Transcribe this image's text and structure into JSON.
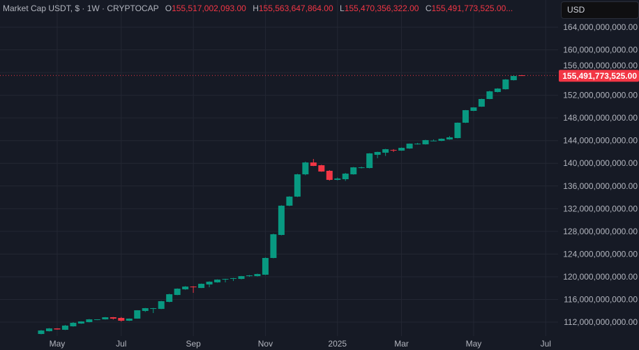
{
  "legend": {
    "symbol": "Market Cap USDT, $ · 1W · CRYPTOCAP",
    "open_label": "O",
    "open": "155,517,002,093.00",
    "high_label": "H",
    "high": "155,563,647,864.00",
    "low_label": "L",
    "low": "155,470,356,322.00",
    "close_label": "C",
    "close": "155,491,773,525.00..."
  },
  "currency_button": "USD",
  "colors": {
    "background": "#161a25",
    "up": "#089981",
    "down": "#f23645",
    "grid": "#232733",
    "axis_text": "#b2b5be"
  },
  "chart_data": {
    "type": "candlestick",
    "title": "Market Cap USDT, $ · 1W · CRYPTOCAP",
    "interval": "1W",
    "ylim": [
      110000000000,
      164000000000
    ],
    "y_ticks": [
      "112,000,000,000.00",
      "116,000,000,000.00",
      "120,000,000,000.00",
      "124,000,000,000.00",
      "128,000,000,000.00",
      "132,000,000,000.00",
      "136,000,000,000.00",
      "140,000,000,000.00",
      "144,000,000,000.00",
      "148,000,000,000.00",
      "152,000,000,000.00",
      "156,000,000,000.00",
      "160,000,000,000.00",
      "164,000,000,000.00"
    ],
    "y_tick_values": [
      112,
      116,
      120,
      124,
      128,
      132,
      136,
      140,
      144,
      148,
      152,
      156,
      160,
      164
    ],
    "value_unit": "billions USD",
    "x_ticks": [
      {
        "label": "May",
        "date": "2024-05-06"
      },
      {
        "label": "Jul",
        "date": "2024-07-01"
      },
      {
        "label": "Sep",
        "date": "2024-09-02"
      },
      {
        "label": "Nov",
        "date": "2024-11-04"
      },
      {
        "label": "2025",
        "date": "2025-01-06"
      },
      {
        "label": "Mar",
        "date": "2025-03-03"
      },
      {
        "label": "May",
        "date": "2025-05-05"
      },
      {
        "label": "Jul",
        "date": "2025-07-07"
      }
    ],
    "last_price_label": "155,491,773,525.00",
    "last_price": 155.492,
    "grid": true,
    "candles_columns": [
      "date",
      "open",
      "high",
      "low",
      "close"
    ],
    "candles": [
      [
        "2024-04-22",
        109.91,
        110.6,
        109.85,
        110.53
      ],
      [
        "2024-04-29",
        110.4,
        110.95,
        110.35,
        110.89
      ],
      [
        "2024-05-06",
        110.89,
        110.92,
        110.68,
        110.71
      ],
      [
        "2024-05-13",
        110.65,
        111.5,
        110.6,
        111.39
      ],
      [
        "2024-05-20",
        111.26,
        112.0,
        111.2,
        111.88
      ],
      [
        "2024-05-27",
        111.75,
        112.15,
        111.7,
        112.12
      ],
      [
        "2024-06-03",
        112.0,
        112.55,
        111.95,
        112.49
      ],
      [
        "2024-06-10",
        112.37,
        112.5,
        112.35,
        112.49
      ],
      [
        "2024-06-17",
        112.49,
        112.9,
        112.45,
        112.86
      ],
      [
        "2024-06-24",
        112.86,
        112.9,
        112.45,
        112.62
      ],
      [
        "2024-07-01",
        112.74,
        112.9,
        112.1,
        112.25
      ],
      [
        "2024-07-08",
        112.25,
        112.65,
        112.2,
        112.62
      ],
      [
        "2024-07-15",
        112.62,
        114.1,
        112.6,
        114.09
      ],
      [
        "2024-07-22",
        113.97,
        114.5,
        113.8,
        114.46
      ],
      [
        "2024-07-29",
        114.33,
        114.5,
        113.6,
        114.46
      ],
      [
        "2024-08-05",
        114.33,
        115.75,
        114.3,
        115.69
      ],
      [
        "2024-08-12",
        115.57,
        117.0,
        115.5,
        116.92
      ],
      [
        "2024-08-19",
        116.79,
        117.95,
        116.75,
        117.9
      ],
      [
        "2024-08-26",
        117.78,
        118.35,
        117.7,
        118.27
      ],
      [
        "2024-09-02",
        118.27,
        118.35,
        117.16,
        118.15
      ],
      [
        "2024-09-09",
        118.02,
        118.8,
        118.0,
        118.76
      ],
      [
        "2024-09-16",
        118.64,
        119.2,
        118.15,
        119.13
      ],
      [
        "2024-09-23",
        119.01,
        119.55,
        118.95,
        119.5
      ],
      [
        "2024-09-30",
        119.5,
        119.65,
        119.01,
        119.62
      ],
      [
        "2024-10-07",
        119.69,
        119.8,
        119.25,
        119.75
      ],
      [
        "2024-10-14",
        119.62,
        120.15,
        119.55,
        120.11
      ],
      [
        "2024-10-21",
        120.11,
        120.3,
        120.0,
        120.24
      ],
      [
        "2024-10-28",
        120.11,
        120.55,
        120.05,
        120.48
      ],
      [
        "2024-11-04",
        120.36,
        123.4,
        120.3,
        123.31
      ],
      [
        "2024-11-11",
        123.31,
        127.6,
        123.25,
        127.49
      ],
      [
        "2024-11-18",
        127.37,
        132.6,
        127.3,
        132.53
      ],
      [
        "2024-11-25",
        132.53,
        134.2,
        132.45,
        134.13
      ],
      [
        "2024-12-02",
        134.13,
        138.15,
        134.05,
        138.06
      ],
      [
        "2024-12-09",
        138.06,
        140.3,
        137.9,
        140.15
      ],
      [
        "2024-12-16",
        140.15,
        140.77,
        139.5,
        139.54
      ],
      [
        "2024-12-23",
        139.66,
        139.75,
        138.5,
        138.55
      ],
      [
        "2024-12-30",
        138.68,
        138.8,
        136.95,
        137.08
      ],
      [
        "2025-01-06",
        137.08,
        137.5,
        137.0,
        137.32
      ],
      [
        "2025-01-13",
        137.2,
        138.3,
        136.9,
        138.18
      ],
      [
        "2025-01-20",
        138.06,
        139.35,
        138.0,
        139.29
      ],
      [
        "2025-01-27",
        139.17,
        139.4,
        139.1,
        139.29
      ],
      [
        "2025-02-03",
        139.17,
        141.8,
        139.1,
        141.75
      ],
      [
        "2025-02-10",
        141.5,
        142.05,
        140.9,
        142.0
      ],
      [
        "2025-02-17",
        141.87,
        142.55,
        141.3,
        142.49
      ],
      [
        "2025-02-24",
        142.36,
        142.5,
        142.0,
        142.24
      ],
      [
        "2025-03-03",
        142.24,
        142.8,
        142.2,
        142.73
      ],
      [
        "2025-03-10",
        142.61,
        143.5,
        142.55,
        143.47
      ],
      [
        "2025-03-17",
        143.35,
        143.6,
        143.3,
        143.47
      ],
      [
        "2025-03-24",
        143.35,
        144.15,
        143.3,
        144.09
      ],
      [
        "2025-03-31",
        143.96,
        144.2,
        143.9,
        144.0
      ],
      [
        "2025-04-07",
        143.96,
        144.4,
        143.9,
        144.33
      ],
      [
        "2025-04-14",
        144.21,
        144.8,
        144.15,
        144.58
      ],
      [
        "2025-04-21",
        144.45,
        147.2,
        144.4,
        147.16
      ],
      [
        "2025-04-28",
        147.16,
        149.4,
        147.1,
        149.37
      ],
      [
        "2025-05-05",
        149.25,
        149.9,
        149.2,
        149.86
      ],
      [
        "2025-05-12",
        149.99,
        151.4,
        149.95,
        151.34
      ],
      [
        "2025-05-19",
        151.34,
        152.8,
        151.3,
        152.69
      ],
      [
        "2025-05-26",
        152.57,
        153.25,
        152.5,
        153.18
      ],
      [
        "2025-06-02",
        153.06,
        154.85,
        153.0,
        154.78
      ],
      [
        "2025-06-09",
        154.66,
        155.52,
        154.6,
        155.39
      ],
      [
        "2025-06-16",
        155.517,
        155.564,
        155.47,
        155.492
      ]
    ]
  }
}
